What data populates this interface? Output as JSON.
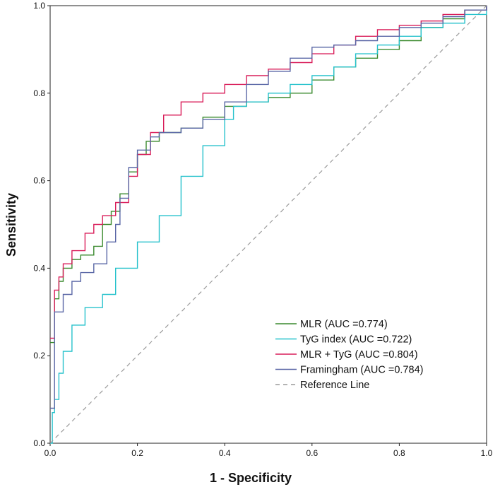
{
  "chart_data": {
    "type": "line",
    "title": "",
    "xlabel": "1 - Specificity",
    "ylabel": "Sensitivity",
    "xlim": [
      0,
      1
    ],
    "ylim": [
      0,
      1
    ],
    "x_ticks": [
      "0.0",
      "0.2",
      "0.4",
      "0.6",
      "0.8",
      "1.0"
    ],
    "y_ticks": [
      "0.0",
      "0.2",
      "0.4",
      "0.6",
      "0.8",
      "1.0"
    ],
    "grid": false,
    "legend_position": "bottom-right",
    "series": [
      {
        "name": "MLR (AUC =0.774)",
        "color": "#3a8a2e",
        "points": [
          [
            0,
            0.23
          ],
          [
            0.01,
            0.33
          ],
          [
            0.02,
            0.37
          ],
          [
            0.03,
            0.4
          ],
          [
            0.05,
            0.42
          ],
          [
            0.07,
            0.43
          ],
          [
            0.1,
            0.45
          ],
          [
            0.12,
            0.5
          ],
          [
            0.14,
            0.53
          ],
          [
            0.16,
            0.57
          ],
          [
            0.18,
            0.62
          ],
          [
            0.2,
            0.66
          ],
          [
            0.22,
            0.69
          ],
          [
            0.25,
            0.71
          ],
          [
            0.3,
            0.72
          ],
          [
            0.35,
            0.745
          ],
          [
            0.4,
            0.77
          ],
          [
            0.45,
            0.78
          ],
          [
            0.5,
            0.79
          ],
          [
            0.55,
            0.8
          ],
          [
            0.6,
            0.83
          ],
          [
            0.65,
            0.86
          ],
          [
            0.7,
            0.88
          ],
          [
            0.75,
            0.9
          ],
          [
            0.8,
            0.92
          ],
          [
            0.85,
            0.95
          ],
          [
            0.9,
            0.97
          ],
          [
            0.95,
            0.99
          ],
          [
            1,
            1
          ]
        ]
      },
      {
        "name": "TyG index (AUC =0.722)",
        "color": "#27c2cc",
        "points": [
          [
            0,
            0
          ],
          [
            0.005,
            0.07
          ],
          [
            0.01,
            0.1
          ],
          [
            0.02,
            0.16
          ],
          [
            0.03,
            0.21
          ],
          [
            0.05,
            0.27
          ],
          [
            0.08,
            0.31
          ],
          [
            0.12,
            0.34
          ],
          [
            0.15,
            0.4
          ],
          [
            0.2,
            0.46
          ],
          [
            0.25,
            0.52
          ],
          [
            0.3,
            0.61
          ],
          [
            0.35,
            0.68
          ],
          [
            0.4,
            0.74
          ],
          [
            0.42,
            0.77
          ],
          [
            0.45,
            0.78
          ],
          [
            0.5,
            0.8
          ],
          [
            0.55,
            0.82
          ],
          [
            0.6,
            0.84
          ],
          [
            0.65,
            0.86
          ],
          [
            0.7,
            0.89
          ],
          [
            0.75,
            0.91
          ],
          [
            0.8,
            0.93
          ],
          [
            0.85,
            0.95
          ],
          [
            0.9,
            0.96
          ],
          [
            0.95,
            0.98
          ],
          [
            1,
            1
          ]
        ]
      },
      {
        "name": "MLR + TyG (AUC =0.804)",
        "color": "#d91e5a",
        "points": [
          [
            0,
            0.24
          ],
          [
            0.01,
            0.35
          ],
          [
            0.02,
            0.38
          ],
          [
            0.03,
            0.41
          ],
          [
            0.05,
            0.44
          ],
          [
            0.08,
            0.48
          ],
          [
            0.1,
            0.5
          ],
          [
            0.12,
            0.52
          ],
          [
            0.15,
            0.55
          ],
          [
            0.18,
            0.61
          ],
          [
            0.2,
            0.66
          ],
          [
            0.23,
            0.71
          ],
          [
            0.26,
            0.75
          ],
          [
            0.3,
            0.78
          ],
          [
            0.35,
            0.8
          ],
          [
            0.4,
            0.82
          ],
          [
            0.45,
            0.84
          ],
          [
            0.5,
            0.855
          ],
          [
            0.55,
            0.87
          ],
          [
            0.6,
            0.89
          ],
          [
            0.65,
            0.91
          ],
          [
            0.7,
            0.93
          ],
          [
            0.75,
            0.945
          ],
          [
            0.8,
            0.955
          ],
          [
            0.85,
            0.965
          ],
          [
            0.9,
            0.98
          ],
          [
            0.95,
            0.99
          ],
          [
            1,
            1
          ]
        ]
      },
      {
        "name": "Framingham (AUC =0.784)",
        "color": "#5a67a6",
        "points": [
          [
            0,
            0.08
          ],
          [
            0.01,
            0.3
          ],
          [
            0.03,
            0.34
          ],
          [
            0.05,
            0.37
          ],
          [
            0.07,
            0.39
          ],
          [
            0.1,
            0.41
          ],
          [
            0.13,
            0.46
          ],
          [
            0.15,
            0.5
          ],
          [
            0.16,
            0.56
          ],
          [
            0.18,
            0.63
          ],
          [
            0.2,
            0.67
          ],
          [
            0.23,
            0.7
          ],
          [
            0.25,
            0.71
          ],
          [
            0.3,
            0.72
          ],
          [
            0.35,
            0.74
          ],
          [
            0.4,
            0.78
          ],
          [
            0.45,
            0.82
          ],
          [
            0.5,
            0.85
          ],
          [
            0.55,
            0.88
          ],
          [
            0.6,
            0.905
          ],
          [
            0.65,
            0.91
          ],
          [
            0.7,
            0.92
          ],
          [
            0.75,
            0.93
          ],
          [
            0.8,
            0.95
          ],
          [
            0.85,
            0.96
          ],
          [
            0.9,
            0.975
          ],
          [
            0.95,
            0.99
          ],
          [
            1,
            1
          ]
        ]
      },
      {
        "name": "Reference Line",
        "color": "#9a9a9a",
        "dashed": true,
        "points": [
          [
            0,
            0
          ],
          [
            1,
            1
          ]
        ]
      }
    ]
  }
}
